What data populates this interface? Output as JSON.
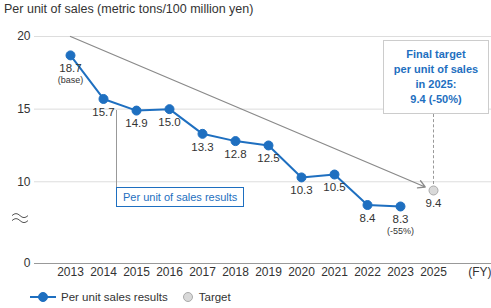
{
  "chart_data": {
    "type": "line",
    "title": "Per unit of sales (metric tons/100 million yen)",
    "xlabel": "(FY)",
    "categories": [
      "2013",
      "2014",
      "2015",
      "2016",
      "2017",
      "2018",
      "2019",
      "2020",
      "2021",
      "2022",
      "2023",
      "2025"
    ],
    "series": [
      {
        "name": "Per unit sales results",
        "type": "line",
        "color": "#1e6fc0",
        "marker": "circle",
        "values": [
          18.7,
          15.7,
          14.9,
          15.0,
          13.3,
          12.8,
          12.5,
          10.3,
          10.5,
          8.4,
          8.3,
          null
        ],
        "value_labels": [
          "18.7",
          "15.7",
          "14.9",
          "15.0",
          "13.3",
          "12.8",
          "12.5",
          "10.3",
          "10.5",
          "8.4",
          "8.3",
          null
        ]
      },
      {
        "name": "Target",
        "type": "scatter",
        "color": "#d9d9d9",
        "marker": "circle",
        "values": [
          null,
          null,
          null,
          null,
          null,
          null,
          null,
          null,
          null,
          null,
          null,
          9.4
        ],
        "value_labels": [
          null,
          null,
          null,
          null,
          null,
          null,
          null,
          null,
          null,
          null,
          null,
          "9.4"
        ]
      }
    ],
    "ylim": [
      0,
      20
    ],
    "yticks": [
      0,
      10,
      15,
      20
    ],
    "grid": true,
    "data_labels": true,
    "legend": "bottom",
    "arrow": {
      "x": [
        "2013",
        "2025"
      ],
      "values": [
        20,
        9.4
      ]
    },
    "annotations": [
      {
        "text": "(base)",
        "x": "2013"
      },
      {
        "text": "(-55%)",
        "x": "2023"
      }
    ],
    "callouts": [
      {
        "text": "Per unit of sales results",
        "x": "2015"
      },
      {
        "text": "Final target\nper unit of sales\nin 2025:\n9.4 (-50%)",
        "x": "2025"
      }
    ]
  }
}
